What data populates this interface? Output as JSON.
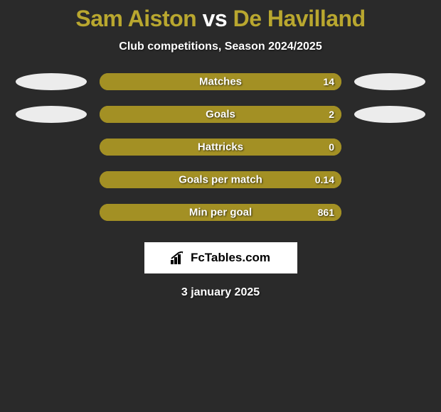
{
  "title": {
    "player1": "Sam Aiston",
    "vs": "vs",
    "player2": "De Havilland",
    "player1_color": "#b9a72f",
    "vs_color": "#ffffff",
    "player2_color": "#b9a72f"
  },
  "subtitle": "Club competitions, Season 2024/2025",
  "colors": {
    "background": "#2a2a2a",
    "ellipse_left": "#ececec",
    "ellipse_right": "#ececec",
    "bar_track": "#b9a72f",
    "bar_fill": "#a39024",
    "text": "#ffffff"
  },
  "stats": [
    {
      "label": "Matches",
      "value": "14",
      "fill_percent": 100,
      "show_left_ellipse": true,
      "show_right_ellipse": true
    },
    {
      "label": "Goals",
      "value": "2",
      "fill_percent": 100,
      "show_left_ellipse": true,
      "show_right_ellipse": true
    },
    {
      "label": "Hattricks",
      "value": "0",
      "fill_percent": 100,
      "show_left_ellipse": false,
      "show_right_ellipse": false
    },
    {
      "label": "Goals per match",
      "value": "0.14",
      "fill_percent": 100,
      "show_left_ellipse": false,
      "show_right_ellipse": false
    },
    {
      "label": "Min per goal",
      "value": "861",
      "fill_percent": 100,
      "show_left_ellipse": false,
      "show_right_ellipse": false
    }
  ],
  "branding": {
    "label": "FcTables.com"
  },
  "date": "3 january 2025"
}
